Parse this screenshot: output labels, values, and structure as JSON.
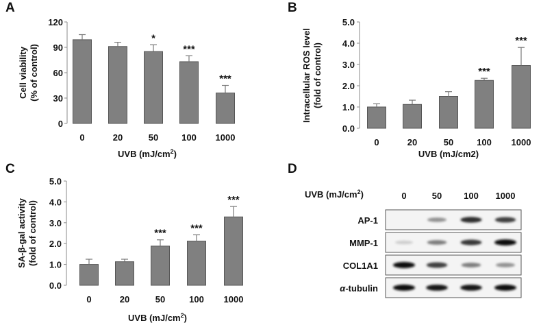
{
  "colors": {
    "bar": "#808080",
    "bar_edge": "#555555",
    "axis": "#888888",
    "text": "#111111",
    "sig": "#222222"
  },
  "chart_data": [
    {
      "panel": "A",
      "type": "bar",
      "categories": [
        "0",
        "20",
        "50",
        "100",
        "1000"
      ],
      "values": [
        99,
        91,
        85,
        73,
        36
      ],
      "errors": [
        6,
        5,
        8,
        7,
        9
      ],
      "significance": [
        "",
        "",
        "*",
        "***",
        "***"
      ],
      "ylim": [
        0,
        120
      ],
      "yticks": [
        "0",
        "30",
        "60",
        "90",
        "120"
      ],
      "ylabel_lines": [
        "Cell viability",
        "(% of control)"
      ],
      "xlabel": "UVB (mJ/cm",
      "xlabel_sup": "2",
      "xlabel_tail": ")"
    },
    {
      "panel": "B",
      "type": "bar",
      "categories": [
        "0",
        "20",
        "50",
        "100",
        "1000"
      ],
      "values": [
        1.0,
        1.12,
        1.5,
        2.25,
        2.95
      ],
      "errors": [
        0.15,
        0.2,
        0.22,
        0.1,
        0.85
      ],
      "significance": [
        "",
        "",
        "",
        "***",
        "***"
      ],
      "ylim": [
        0,
        5
      ],
      "yticks": [
        "0.0",
        "1.0",
        "2.0",
        "3.0",
        "4.0",
        "5.0"
      ],
      "ylabel_lines": [
        "Intracellular ROS level",
        "(fold of control)"
      ],
      "xlabel": "UVB (mJ/cm2)",
      "xlabel_sup": "",
      "xlabel_tail": ""
    },
    {
      "panel": "C",
      "type": "bar",
      "categories": [
        "0",
        "20",
        "50",
        "100",
        "1000"
      ],
      "values": [
        1.0,
        1.13,
        1.88,
        2.12,
        3.28
      ],
      "errors": [
        0.25,
        0.12,
        0.3,
        0.3,
        0.5
      ],
      "significance": [
        "",
        "",
        "***",
        "***",
        "***"
      ],
      "ylim": [
        0,
        5
      ],
      "yticks": [
        "0.0",
        "1.0",
        "2.0",
        "3.0",
        "4.0",
        "5.0"
      ],
      "ylabel_lines": [
        "SA-β-gal activity",
        "(fold of control)"
      ],
      "xlabel": "UVB  (mJ/cm",
      "xlabel_sup": "2",
      "xlabel_tail": ")"
    }
  ],
  "panel_d": {
    "letter": "D",
    "header_label": "UVB (mJ/cm",
    "header_sup": "2",
    "header_tail": ")",
    "doses": [
      "0",
      "50",
      "100",
      "1000"
    ],
    "blots": [
      {
        "label": "AP-1",
        "intensities": [
          0.02,
          0.35,
          0.85,
          0.75
        ]
      },
      {
        "label": "MMP-1",
        "intensities": [
          0.05,
          0.45,
          0.8,
          1.0
        ]
      },
      {
        "label": "COL1A1",
        "intensities": [
          1.0,
          0.75,
          0.45,
          0.35
        ]
      },
      {
        "label": "α-tubulin",
        "label_italic": "α",
        "label_rest": "-tubulin",
        "intensities": [
          1.0,
          0.95,
          0.95,
          1.0
        ]
      }
    ]
  }
}
